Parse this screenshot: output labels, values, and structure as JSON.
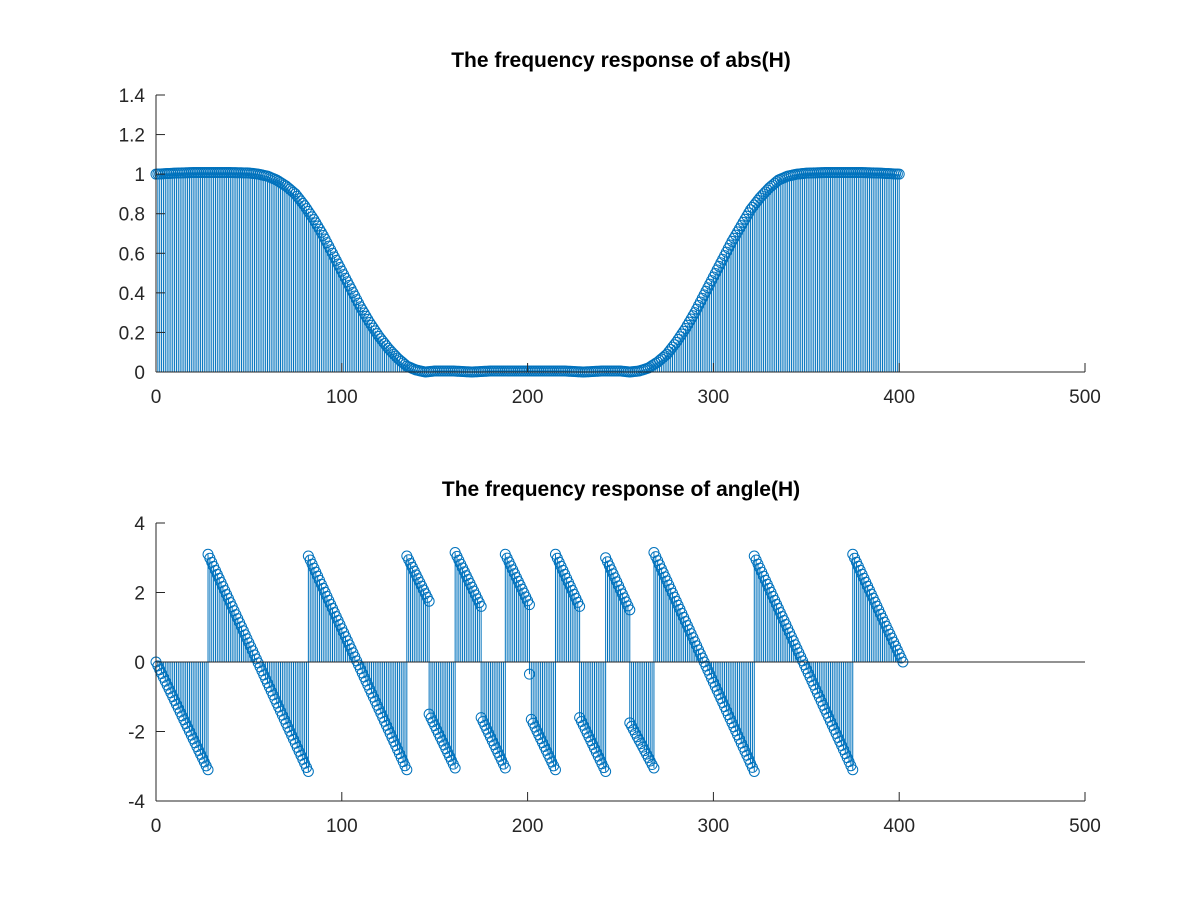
{
  "figure": {
    "series_color": "#0072BD",
    "axis_color": "#262626",
    "background": "#ffffff"
  },
  "chart_data": [
    {
      "type": "stem",
      "title": "The frequency response of abs(H)",
      "xlabel": "",
      "ylabel": "",
      "xlim": [
        0,
        500
      ],
      "ylim": [
        0,
        1.4
      ],
      "xticks": [
        0,
        100,
        200,
        300,
        400,
        500
      ],
      "yticks": [
        0,
        0.2,
        0.4,
        0.6,
        0.8,
        1,
        1.2,
        1.4
      ],
      "xtick_labels": [
        "0",
        "100",
        "200",
        "300",
        "400",
        "500"
      ],
      "ytick_labels": [
        "0",
        "0.2",
        "0.4",
        "0.6",
        "0.8",
        "1",
        "1.2",
        "1.4"
      ],
      "marker": "circle",
      "grid": false,
      "x": [
        0,
        10,
        20,
        30,
        40,
        50,
        55,
        60,
        65,
        70,
        75,
        80,
        85,
        90,
        95,
        100,
        105,
        110,
        115,
        120,
        125,
        130,
        135,
        140,
        145,
        150,
        160,
        170,
        180,
        190,
        200,
        210,
        220,
        230,
        240,
        250,
        255,
        260,
        265,
        270,
        275,
        280,
        285,
        290,
        295,
        300,
        305,
        310,
        315,
        320,
        325,
        330,
        335,
        340,
        345,
        350,
        360,
        370,
        380,
        390,
        400
      ],
      "y": [
        1.0,
        1.005,
        1.008,
        1.008,
        1.008,
        1.006,
        1.0,
        0.99,
        0.97,
        0.94,
        0.9,
        0.84,
        0.77,
        0.69,
        0.6,
        0.51,
        0.42,
        0.33,
        0.25,
        0.18,
        0.12,
        0.07,
        0.03,
        0.01,
        0.0,
        0.005,
        0.005,
        0.0,
        0.005,
        0.005,
        0.005,
        0.005,
        0.005,
        0.0,
        0.005,
        0.005,
        0.0,
        0.005,
        0.02,
        0.05,
        0.09,
        0.15,
        0.22,
        0.3,
        0.39,
        0.48,
        0.57,
        0.66,
        0.74,
        0.82,
        0.88,
        0.93,
        0.97,
        0.99,
        1.0,
        1.005,
        1.008,
        1.008,
        1.008,
        1.005,
        1.0
      ]
    },
    {
      "type": "stem",
      "title": "The frequency response of angle(H)",
      "xlabel": "",
      "ylabel": "",
      "xlim": [
        0,
        500
      ],
      "ylim": [
        -4,
        4
      ],
      "xticks": [
        0,
        100,
        200,
        300,
        400,
        500
      ],
      "yticks": [
        -4,
        -2,
        0,
        2,
        4
      ],
      "xtick_labels": [
        "0",
        "100",
        "200",
        "300",
        "400",
        "500"
      ],
      "ytick_labels": [
        "-4",
        "-2",
        "0",
        "2",
        "4"
      ],
      "marker": "circle",
      "grid": false,
      "segments": [
        {
          "x": [
            0,
            28
          ],
          "y": [
            0.0,
            -3.1
          ]
        },
        {
          "x": [
            28,
            82
          ],
          "y": [
            3.1,
            -3.15
          ]
        },
        {
          "x": [
            82,
            135
          ],
          "y": [
            3.05,
            -3.1
          ]
        },
        {
          "x": [
            135,
            147
          ],
          "y": [
            3.05,
            1.75
          ]
        },
        {
          "x": [
            147,
            161
          ],
          "y": [
            -1.5,
            -3.05
          ]
        },
        {
          "x": [
            161,
            175
          ],
          "y": [
            3.15,
            1.6
          ]
        },
        {
          "x": [
            175,
            188
          ],
          "y": [
            -1.6,
            -3.05
          ]
        },
        {
          "x": [
            188,
            201
          ],
          "y": [
            3.1,
            1.65
          ]
        },
        {
          "x": [
            201,
            201
          ],
          "y": [
            -0.35,
            -0.35
          ]
        },
        {
          "x": [
            202,
            215
          ],
          "y": [
            -1.65,
            -3.1
          ]
        },
        {
          "x": [
            215,
            228
          ],
          "y": [
            3.1,
            1.6
          ]
        },
        {
          "x": [
            228,
            242
          ],
          "y": [
            -1.6,
            -3.15
          ]
        },
        {
          "x": [
            242,
            255
          ],
          "y": [
            3.0,
            1.5
          ]
        },
        {
          "x": [
            255,
            268
          ],
          "y": [
            -1.75,
            -3.05
          ]
        },
        {
          "x": [
            268,
            322
          ],
          "y": [
            3.15,
            -3.15
          ]
        },
        {
          "x": [
            322,
            375
          ],
          "y": [
            3.05,
            -3.1
          ]
        },
        {
          "x": [
            375,
            402
          ],
          "y": [
            3.1,
            0.0
          ]
        }
      ]
    }
  ]
}
